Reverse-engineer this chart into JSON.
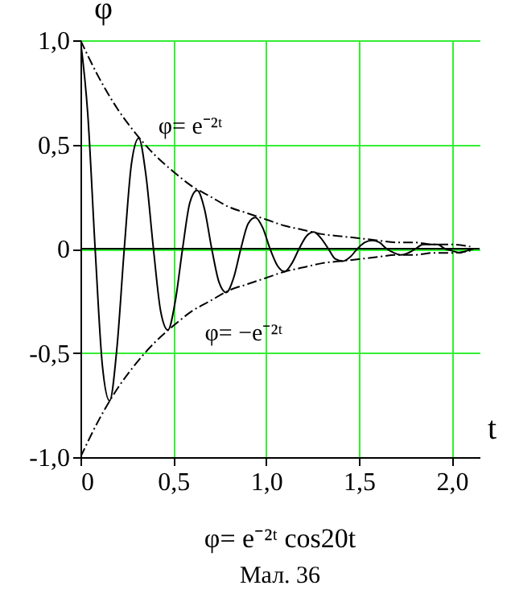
{
  "chart_data": {
    "type": "line",
    "title": "φ= e⁻²ᵗ cos20t",
    "subtitle": "Мал. 36",
    "xlabel": "t",
    "ylabel": "φ",
    "x": [
      0,
      0.039,
      0.079,
      0.118,
      0.157,
      0.196,
      0.236,
      0.275,
      0.314,
      0.353,
      0.393,
      0.432,
      0.471,
      0.511,
      0.55,
      0.589,
      0.628,
      0.668,
      0.707,
      0.746,
      0.785,
      0.825,
      0.864,
      0.903,
      0.942,
      0.982,
      1.021,
      1.06,
      1.1,
      1.139,
      1.178,
      1.217,
      1.257,
      1.296,
      1.335,
      1.374,
      1.414,
      1.453,
      1.492,
      1.532,
      1.571,
      1.61,
      1.649,
      1.689,
      1.728,
      1.767,
      1.806,
      1.846,
      1.885,
      1.924,
      1.963,
      2.003,
      2.042,
      2.081,
      2.121
    ],
    "series": [
      {
        "color": "#000000",
        "values": [
          1,
          0.65,
          0,
          -0.56,
          -0.73,
          -0.48,
          0,
          0.41,
          0.53,
          0.35,
          0,
          -0.3,
          -0.39,
          -0.25,
          0,
          0.22,
          0.28,
          0.19,
          0,
          -0.16,
          -0.21,
          -0.14,
          0,
          0.12,
          0.15,
          0.1,
          0,
          -0.08,
          -0.11,
          -0.07,
          0,
          0.06,
          0.08,
          0.05,
          0,
          -0.05,
          -0.06,
          -0.04,
          0,
          0.03,
          0.04,
          0.03,
          0,
          -0.02,
          -0.03,
          -0.02,
          0,
          0.02,
          0.02,
          0.02,
          0,
          -0.01,
          -0.02,
          -0.01,
          0
        ]
      },
      {
        "color": "#000000",
        "line_style": "dashed",
        "x": [
          0,
          0.1,
          0.2,
          0.3,
          0.4,
          0.5,
          0.6,
          0.7,
          0.8,
          0.9,
          1,
          1.1,
          1.2,
          1.3,
          1.4,
          1.5,
          1.6,
          1.7,
          1.8,
          1.9,
          2,
          2.1
        ],
        "values": [
          1,
          0.82,
          0.67,
          0.55,
          0.45,
          0.37,
          0.3,
          0.25,
          0.2,
          0.17,
          0.14,
          0.11,
          0.09,
          0.07,
          0.06,
          0.05,
          0.04,
          0.03,
          0.03,
          0.02,
          0.02,
          0.01
        ]
      },
      {
        "color": "#000000",
        "line_style": "dashed",
        "x": [
          0,
          0.1,
          0.2,
          0.3,
          0.4,
          0.5,
          0.6,
          0.7,
          0.8,
          0.9,
          1,
          1.1,
          1.2,
          1.3,
          1.4,
          1.5,
          1.6,
          1.7,
          1.8,
          1.9,
          2,
          2.1
        ],
        "values": [
          -1,
          -0.82,
          -0.67,
          -0.55,
          -0.45,
          -0.37,
          -0.3,
          -0.25,
          -0.2,
          -0.17,
          -0.14,
          -0.11,
          -0.09,
          -0.07,
          -0.06,
          -0.05,
          -0.04,
          -0.03,
          -0.03,
          -0.02,
          -0.02,
          -0.01
        ]
      }
    ],
    "annotations": [
      {
        "text": "φ= e⁻²ᵗ",
        "x": 0.35,
        "y": 0.5
      },
      {
        "text": "φ= −e⁻²ᵗ",
        "x": 0.6,
        "y": -0.3
      }
    ],
    "xlim": [
      0,
      2.15
    ],
    "ylim": [
      -1,
      1
    ],
    "xticks": [
      0,
      {
        "value": 0.5,
        "label": "0,5"
      },
      {
        "value": 1,
        "label": "1,0"
      },
      {
        "value": 1.5,
        "label": "1,5"
      },
      {
        "value": 2,
        "label": "2,0"
      }
    ],
    "yticks": [
      {
        "value": -1,
        "label": "-1,0"
      },
      {
        "value": -0.5,
        "label": "-0,5"
      },
      0,
      {
        "value": 0.5,
        "label": "0,5"
      },
      {
        "value": 1,
        "label": "1,0"
      }
    ],
    "grid": true,
    "marker": "none"
  }
}
